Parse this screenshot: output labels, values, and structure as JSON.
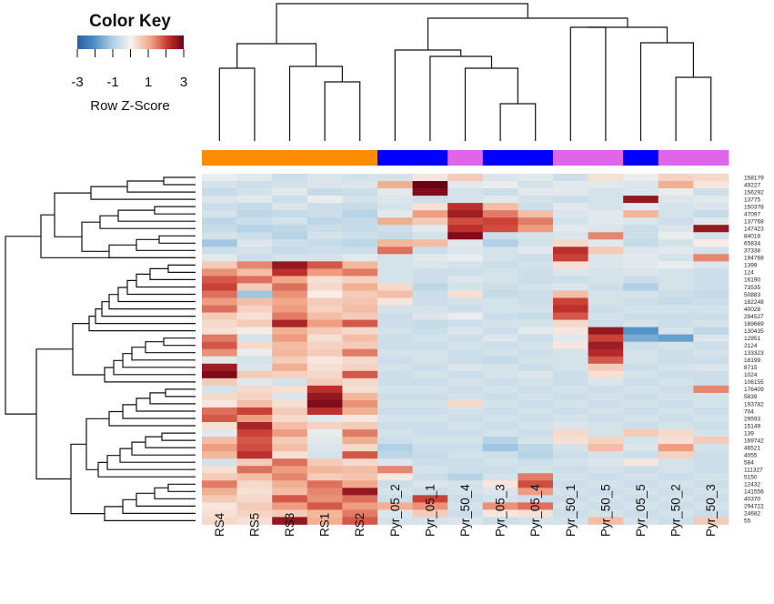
{
  "chart_data": {
    "type": "heatmap",
    "color_key": {
      "title": "Color Key",
      "label": "Row Z-Score",
      "ticks": [
        -3,
        -1,
        1,
        3
      ],
      "range": [
        -3,
        3
      ],
      "colors": {
        "low": "#2d5fa3",
        "mid": "#f7f4ef",
        "high": "#6a0014"
      }
    },
    "columns": [
      "RS4",
      "RS5",
      "RS3",
      "RS1",
      "RS2",
      "Pyr_05_2",
      "Pyr_05_1",
      "Pyr_50_4",
      "Pyr_05_3",
      "Pyr_05_4",
      "Pyr_50_1",
      "Pyr_50_5",
      "Pyr_05_5",
      "Pyr_50_2",
      "Pyr_50_3"
    ],
    "column_groups": [
      "RS",
      "RS",
      "RS",
      "RS",
      "RS",
      "Pyr_05",
      "Pyr_05",
      "Pyr_50",
      "Pyr_05",
      "Pyr_05",
      "Pyr_50",
      "Pyr_50",
      "Pyr_05",
      "Pyr_50",
      "Pyr_50"
    ],
    "group_colors": {
      "RS": "#ff8c00",
      "Pyr_05": "#0000ff",
      "Pyr_50": "#e066e8"
    },
    "rows": [
      "158179",
      "49227",
      "156292",
      "13775",
      "150378",
      "47097",
      "137768",
      "147423",
      "84018",
      "65834",
      "37338",
      "194768",
      "1399",
      "124",
      "16190",
      "73535",
      "50883",
      "182248",
      "40028",
      "294527",
      "169669",
      "130435",
      "12951",
      "2124",
      "133323",
      "18199",
      "8715",
      "1024",
      "106155",
      "176409",
      "5839",
      "193782",
      "704",
      "29593",
      "15149",
      "139",
      "169742",
      "46521",
      "4055",
      "584",
      "111327",
      "5150",
      "12432",
      "141556",
      "40370",
      "294722",
      "24682",
      "55"
    ],
    "values": [
      [
        -0.2,
        -0.3,
        -0.6,
        -0.4,
        -0.5,
        -0.5,
        0.2,
        0.6,
        -0.4,
        -0.3,
        -0.6,
        0.3,
        -0.2,
        0.5,
        0.4
      ],
      [
        -0.5,
        -0.6,
        -0.5,
        -0.4,
        -0.4,
        1.0,
        3.0,
        -0.3,
        -0.2,
        -0.5,
        -0.3,
        -0.3,
        -0.4,
        1.0,
        0.2
      ],
      [
        -0.7,
        -0.5,
        -0.3,
        -0.7,
        -0.6,
        -0.3,
        2.8,
        -0.5,
        -0.6,
        -0.3,
        -0.3,
        -0.5,
        -0.4,
        -0.2,
        -0.6
      ],
      [
        -0.4,
        -0.3,
        -0.6,
        -0.2,
        -0.5,
        -0.4,
        -0.6,
        -0.5,
        -0.3,
        -0.5,
        -0.6,
        -0.5,
        2.6,
        -0.4,
        -0.3
      ],
      [
        -0.6,
        -0.7,
        -0.4,
        -0.6,
        -0.7,
        -0.5,
        0.3,
        2.2,
        0.8,
        -0.6,
        -0.3,
        -0.5,
        -0.3,
        -0.5,
        -0.4
      ],
      [
        -0.5,
        -0.8,
        -0.7,
        -0.6,
        -0.9,
        -0.3,
        1.2,
        2.5,
        1.5,
        0.8,
        -0.4,
        -0.3,
        0.9,
        -0.5,
        -0.7
      ],
      [
        -0.8,
        -0.6,
        -0.5,
        -0.8,
        -0.7,
        1.0,
        0.6,
        1.9,
        2.0,
        1.5,
        -0.5,
        -0.3,
        -0.4,
        -0.6,
        -0.3
      ],
      [
        -0.7,
        -0.9,
        -0.8,
        -0.6,
        -0.7,
        -0.6,
        -0.3,
        2.2,
        1.9,
        1.2,
        -0.3,
        -0.4,
        -0.6,
        -0.4,
        2.6
      ],
      [
        -0.5,
        -0.6,
        -0.9,
        -0.5,
        -0.6,
        -0.7,
        -0.5,
        2.8,
        -0.6,
        -0.5,
        -0.4,
        1.4,
        -0.6,
        -0.2,
        -0.5
      ],
      [
        -1.2,
        -0.4,
        -0.6,
        -0.7,
        -0.8,
        0.9,
        0.8,
        -0.3,
        -1.0,
        -0.5,
        0.4,
        -0.3,
        -0.7,
        -0.5,
        0.1
      ],
      [
        -0.6,
        -0.5,
        -0.7,
        -0.6,
        -0.6,
        1.6,
        -0.6,
        -0.4,
        -0.5,
        -0.3,
        2.2,
        0.6,
        -0.4,
        -0.3,
        -0.5
      ],
      [
        -0.3,
        -0.6,
        -0.5,
        -0.5,
        -0.3,
        -0.5,
        -0.3,
        -0.2,
        -0.5,
        -0.6,
        2.0,
        -0.4,
        -0.3,
        -0.5,
        1.4
      ],
      [
        0.6,
        1.4,
        2.6,
        1.8,
        0.9,
        -0.5,
        -0.4,
        -0.5,
        -0.6,
        -0.5,
        0.3,
        -0.4,
        -0.3,
        -0.2,
        -0.4
      ],
      [
        1.3,
        0.8,
        2.2,
        1.2,
        1.5,
        -0.5,
        -0.6,
        -0.6,
        -0.5,
        -0.6,
        -0.4,
        -0.5,
        -0.4,
        -0.5,
        -0.6
      ],
      [
        1.8,
        1.6,
        1.1,
        0.3,
        0.5,
        -0.5,
        -0.6,
        -0.4,
        -0.5,
        -0.6,
        -0.6,
        -0.5,
        -0.6,
        -0.5,
        -0.6
      ],
      [
        2.0,
        0.6,
        1.6,
        0.4,
        1.0,
        0.4,
        -0.8,
        -0.5,
        -0.6,
        -0.5,
        -0.4,
        -0.6,
        -1.0,
        -0.5,
        -0.6
      ],
      [
        1.6,
        -1.2,
        1.3,
        0.1,
        0.6,
        0.8,
        -0.6,
        0.3,
        -0.7,
        -0.6,
        0.8,
        -0.5,
        -0.5,
        -0.6,
        -0.7
      ],
      [
        1.2,
        0.8,
        1.1,
        0.6,
        0.7,
        0.2,
        -0.6,
        -0.5,
        -0.5,
        -0.6,
        2.0,
        -0.5,
        -0.6,
        -0.7,
        -0.6
      ],
      [
        1.6,
        0.5,
        1.2,
        0.5,
        0.8,
        -0.5,
        -0.5,
        -0.6,
        -0.5,
        -0.5,
        2.2,
        -0.6,
        -0.5,
        -0.5,
        -0.5
      ],
      [
        0.6,
        0.3,
        1.5,
        0.8,
        0.6,
        -0.6,
        -0.4,
        -0.2,
        -0.6,
        -0.7,
        1.8,
        -0.5,
        -0.6,
        -0.6,
        -0.6
      ],
      [
        0.4,
        0.6,
        2.4,
        1.2,
        1.8,
        -0.6,
        -0.7,
        -0.6,
        -0.5,
        -0.5,
        0.4,
        -0.6,
        -0.5,
        -0.6,
        -0.5
      ],
      [
        0.3,
        0.1,
        1.0,
        0.6,
        0.4,
        -0.5,
        -0.6,
        -0.4,
        -0.6,
        -0.3,
        0.2,
        2.6,
        -2.0,
        -0.5,
        -0.8
      ],
      [
        1.5,
        -0.5,
        1.2,
        0.3,
        0.8,
        -0.6,
        -0.5,
        -0.6,
        -0.4,
        -0.6,
        -0.3,
        2.0,
        -1.6,
        -1.8,
        -0.4
      ],
      [
        1.8,
        0.4,
        0.8,
        0.5,
        0.6,
        -0.6,
        -0.6,
        -0.5,
        -0.6,
        -0.5,
        0.2,
        2.5,
        -0.6,
        -0.5,
        -0.6
      ],
      [
        1.3,
        -0.2,
        0.9,
        0.6,
        1.5,
        -0.5,
        -0.5,
        -0.6,
        -0.5,
        -0.6,
        -0.5,
        2.3,
        -0.5,
        -0.6,
        -0.5
      ],
      [
        -0.3,
        -0.5,
        0.6,
        0.2,
        0.4,
        -0.6,
        -0.5,
        -0.6,
        -0.7,
        -0.5,
        -0.5,
        1.8,
        -0.5,
        -0.6,
        -0.6
      ],
      [
        2.5,
        -0.4,
        1.0,
        0.3,
        0.5,
        -0.5,
        -0.6,
        -0.4,
        -0.5,
        -0.6,
        -0.5,
        0.6,
        -0.6,
        -0.5,
        -0.4
      ],
      [
        2.8,
        0.6,
        0.5,
        0.4,
        1.8,
        -0.6,
        -0.5,
        -0.6,
        -0.5,
        -0.4,
        -0.6,
        0.3,
        -0.5,
        -0.6,
        -0.6
      ],
      [
        0.6,
        -0.3,
        -0.5,
        0.6,
        0.4,
        -0.6,
        -0.6,
        -0.5,
        -0.6,
        -0.5,
        -0.6,
        -0.4,
        -0.6,
        -0.5,
        -0.6
      ],
      [
        -0.5,
        0.4,
        0.3,
        2.2,
        0.3,
        -0.5,
        -0.5,
        -0.6,
        -0.5,
        -0.6,
        -0.5,
        -0.6,
        -0.5,
        -0.6,
        1.4
      ],
      [
        0.4,
        0.5,
        -0.4,
        2.6,
        0.9,
        -0.6,
        -0.6,
        -0.5,
        -0.6,
        -0.5,
        -0.6,
        -0.5,
        -0.6,
        -0.5,
        -0.5
      ],
      [
        0.2,
        0.8,
        0.3,
        2.8,
        1.3,
        -0.5,
        -0.5,
        0.4,
        -0.5,
        -0.6,
        -0.5,
        -0.6,
        -0.5,
        -0.6,
        -0.5
      ],
      [
        1.6,
        2.0,
        0.6,
        2.2,
        1.0,
        -0.6,
        -0.6,
        -0.5,
        -0.6,
        -0.5,
        -0.6,
        -0.5,
        -0.6,
        -0.5,
        -0.6
      ],
      [
        1.8,
        1.2,
        0.4,
        -0.3,
        0.2,
        -0.5,
        -0.5,
        -0.6,
        -0.5,
        -0.6,
        -0.5,
        -0.6,
        -0.5,
        -0.6,
        -0.5
      ],
      [
        0.3,
        2.4,
        0.8,
        0.5,
        0.6,
        -0.6,
        -0.6,
        -0.5,
        -0.6,
        -0.5,
        -0.4,
        -0.5,
        -0.6,
        -0.5,
        -0.6
      ],
      [
        -0.3,
        2.0,
        1.2,
        -0.2,
        1.5,
        -0.5,
        -0.6,
        -0.6,
        -0.5,
        -0.6,
        0.4,
        -0.5,
        0.6,
        0.4,
        -0.5
      ],
      [
        0.8,
        1.8,
        0.6,
        -0.3,
        1.0,
        -0.6,
        -0.5,
        -0.5,
        -0.9,
        -0.5,
        0.3,
        0.5,
        -0.5,
        0.3,
        0.6
      ],
      [
        1.2,
        1.9,
        0.8,
        -0.4,
        0.4,
        -1.0,
        -0.6,
        -0.6,
        -1.2,
        -0.8,
        -0.5,
        0.8,
        -0.4,
        1.2,
        -0.5
      ],
      [
        0.9,
        2.2,
        0.3,
        -0.5,
        1.8,
        -0.8,
        -0.7,
        -0.5,
        -0.6,
        -0.9,
        -0.6,
        -0.5,
        -0.6,
        0.5,
        -0.6
      ],
      [
        -0.5,
        0.6,
        1.6,
        0.6,
        0.4,
        -0.4,
        -0.6,
        -0.6,
        -0.5,
        -0.6,
        -0.5,
        -0.4,
        0.2,
        -0.5,
        -0.6
      ],
      [
        0.3,
        1.6,
        1.2,
        0.9,
        0.8,
        1.4,
        -0.5,
        -0.6,
        -0.6,
        -0.5,
        -0.6,
        -0.5,
        -0.6,
        -0.5,
        -0.6
      ],
      [
        0.6,
        0.8,
        1.4,
        0.6,
        0.7,
        0.2,
        -0.6,
        -0.9,
        -0.5,
        1.5,
        -0.5,
        -0.6,
        -0.5,
        -0.6,
        -0.5
      ],
      [
        1.5,
        0.4,
        1.0,
        1.6,
        1.1,
        -0.6,
        -0.4,
        -0.5,
        0.2,
        1.9,
        -0.6,
        -0.5,
        -0.6,
        -0.5,
        -0.6
      ],
      [
        1.0,
        0.3,
        0.8,
        1.4,
        2.6,
        -0.5,
        -0.6,
        -0.5,
        -0.4,
        1.2,
        -0.5,
        -0.6,
        -0.5,
        -0.6,
        -0.5
      ],
      [
        0.6,
        0.4,
        1.8,
        1.3,
        1.6,
        -0.6,
        2.0,
        -0.6,
        -0.5,
        -0.6,
        -0.6,
        -0.5,
        -0.6,
        -0.5,
        -0.6
      ],
      [
        0.2,
        0.6,
        1.2,
        1.8,
        1.2,
        1.0,
        1.3,
        -0.5,
        1.3,
        1.6,
        -0.5,
        -0.6,
        -0.5,
        -0.6,
        -0.5
      ],
      [
        0.3,
        0.5,
        0.6,
        0.9,
        1.5,
        -0.4,
        0.6,
        -0.6,
        0.2,
        0.3,
        -0.6,
        -0.5,
        -0.6,
        -0.5,
        -0.6
      ],
      [
        0.4,
        0.3,
        2.6,
        1.0,
        1.8,
        -0.5,
        -0.5,
        -0.4,
        -0.6,
        -0.5,
        -0.5,
        0.8,
        -0.5,
        -0.6,
        0.6
      ]
    ]
  }
}
